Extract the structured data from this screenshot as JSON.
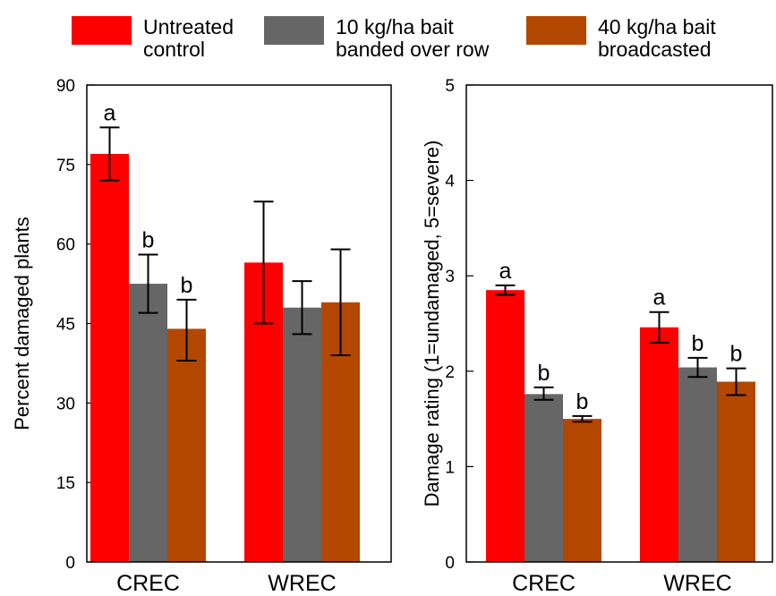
{
  "legend": {
    "items": [
      {
        "lines": [
          "Untreated",
          "control"
        ],
        "color": "#ff0000"
      },
      {
        "lines": [
          "10 kg/ha bait",
          "banded over row"
        ],
        "color": "#666666"
      },
      {
        "lines": [
          "40 kg/ha bait",
          "broadcasted"
        ],
        "color": "#b34700"
      }
    ]
  },
  "chart_data": [
    {
      "type": "bar",
      "ylabel": "Percent damaged plants",
      "ylim": [
        0,
        90
      ],
      "yticks": [
        0,
        15,
        30,
        45,
        60,
        75,
        90
      ],
      "categories": [
        "CREC",
        "WREC"
      ],
      "series": [
        {
          "name": "Untreated control",
          "color": "#ff0000",
          "values": [
            77,
            56.5
          ],
          "err_low": [
            72,
            45
          ],
          "err_high": [
            82,
            68
          ],
          "letters": [
            "a",
            ""
          ]
        },
        {
          "name": "10 kg/ha bait banded over row",
          "color": "#666666",
          "values": [
            52.5,
            48
          ],
          "err_low": [
            47,
            43
          ],
          "err_high": [
            58,
            53
          ],
          "letters": [
            "b",
            ""
          ]
        },
        {
          "name": "40 kg/ha bait broadcasted",
          "color": "#b34700",
          "values": [
            44,
            49
          ],
          "err_low": [
            38,
            39
          ],
          "err_high": [
            49.5,
            59
          ],
          "letters": [
            "b",
            ""
          ]
        }
      ]
    },
    {
      "type": "bar",
      "ylabel": "Damage rating (1=undamaged, 5=severe)",
      "ylim": [
        0,
        5
      ],
      "yticks": [
        0,
        1,
        2,
        3,
        4,
        5
      ],
      "categories": [
        "CREC",
        "WREC"
      ],
      "series": [
        {
          "name": "Untreated control",
          "color": "#ff0000",
          "values": [
            2.85,
            2.46
          ],
          "err_low": [
            2.8,
            2.3
          ],
          "err_high": [
            2.9,
            2.62
          ],
          "letters": [
            "a",
            "a"
          ]
        },
        {
          "name": "10 kg/ha bait banded over row",
          "color": "#666666",
          "values": [
            1.76,
            2.04
          ],
          "err_low": [
            1.7,
            1.94
          ],
          "err_high": [
            1.83,
            2.14
          ],
          "letters": [
            "b",
            "b"
          ]
        },
        {
          "name": "40 kg/ha bait broadcasted",
          "color": "#b34700",
          "values": [
            1.5,
            1.89
          ],
          "err_low": [
            1.47,
            1.75
          ],
          "err_high": [
            1.53,
            2.03
          ],
          "letters": [
            "b",
            "b"
          ]
        }
      ]
    }
  ]
}
